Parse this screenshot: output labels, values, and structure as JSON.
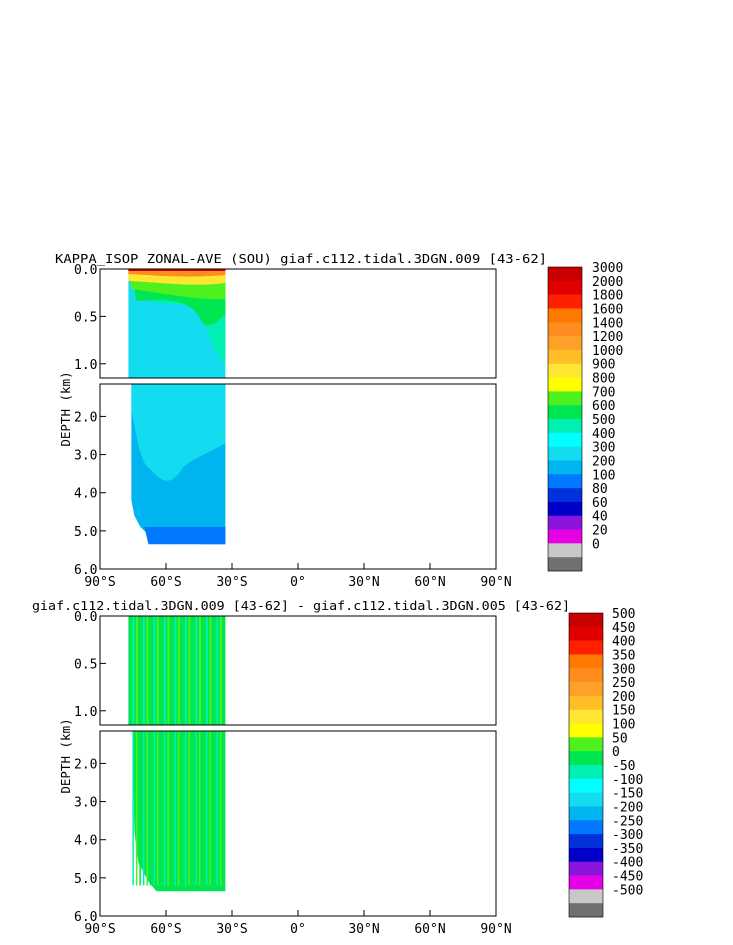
{
  "chart_data": [
    {
      "type": "heatmap",
      "title": "KAPPA_ISOP ZONAL-AVE (SOU) giaf.c112.tidal.3DGN.009 [43-62]",
      "ylabel": "DEPTH (km)",
      "xlabel": "",
      "x_ticks": [
        "90°S",
        "60°S",
        "30°S",
        "0°",
        "30°N",
        "60°N",
        "90°N"
      ],
      "xlim": [
        -90,
        90
      ],
      "y_ticks_upper": [
        "0.0",
        "0.5",
        "1.0"
      ],
      "y_ticks_lower": [
        "2.0",
        "3.0",
        "4.0",
        "5.0",
        "6.0"
      ],
      "ylim_upper": [
        0,
        1.15
      ],
      "ylim_lower": [
        1.15,
        6.0
      ],
      "data_extent_lat": [
        -78,
        -33
      ],
      "colorbar": {
        "labels": [
          "3000",
          "2000",
          "1800",
          "1600",
          "1400",
          "1200",
          "1000",
          "900",
          "800",
          "700",
          "600",
          "500",
          "400",
          "300",
          "200",
          "100",
          "80",
          "60",
          "40",
          "20",
          "0"
        ],
        "colors": [
          "#c80000",
          "#e00000",
          "#ff2000",
          "#ff7800",
          "#ff8c1e",
          "#ffa028",
          "#ffbe28",
          "#ffe632",
          "#ffff00",
          "#4ef01e",
          "#00e650",
          "#00f0b4",
          "#00ffff",
          "#14dcf0",
          "#00b4f0",
          "#0078ff",
          "#0032dc",
          "#0000c8",
          "#8c14dc",
          "#e600e6",
          "#c8c8c8",
          "#707070"
        ]
      }
    },
    {
      "type": "heatmap",
      "title": "giaf.c112.tidal.3DGN.009 [43-62] - giaf.c112.tidal.3DGN.005 [43-62]",
      "ylabel": "DEPTH (km)",
      "xlabel": "",
      "x_ticks": [
        "90°S",
        "60°S",
        "30°S",
        "0°",
        "30°N",
        "60°N",
        "90°N"
      ],
      "xlim": [
        -90,
        90
      ],
      "y_ticks_upper": [
        "0.0",
        "0.5",
        "1.0"
      ],
      "y_ticks_lower": [
        "2.0",
        "3.0",
        "4.0",
        "5.0",
        "6.0"
      ],
      "ylim_upper": [
        0,
        1.15
      ],
      "ylim_lower": [
        1.15,
        6.0
      ],
      "data_extent_lat": [
        -78,
        -33
      ],
      "colorbar": {
        "labels": [
          "500",
          "450",
          "400",
          "350",
          "300",
          "250",
          "200",
          "150",
          "100",
          "50",
          "0",
          "-50",
          "-100",
          "-150",
          "-200",
          "-250",
          "-300",
          "-350",
          "-400",
          "-450",
          "-500"
        ],
        "colors": [
          "#c80000",
          "#e00000",
          "#ff2000",
          "#ff7800",
          "#ff8c1e",
          "#ffa028",
          "#ffbe28",
          "#ffe632",
          "#ffff00",
          "#4ef01e",
          "#00e650",
          "#00f0b4",
          "#00ffff",
          "#14dcf0",
          "#00b4f0",
          "#0078ff",
          "#0032dc",
          "#0000c8",
          "#8c14dc",
          "#e600e6",
          "#c8c8c8",
          "#707070"
        ]
      }
    }
  ]
}
